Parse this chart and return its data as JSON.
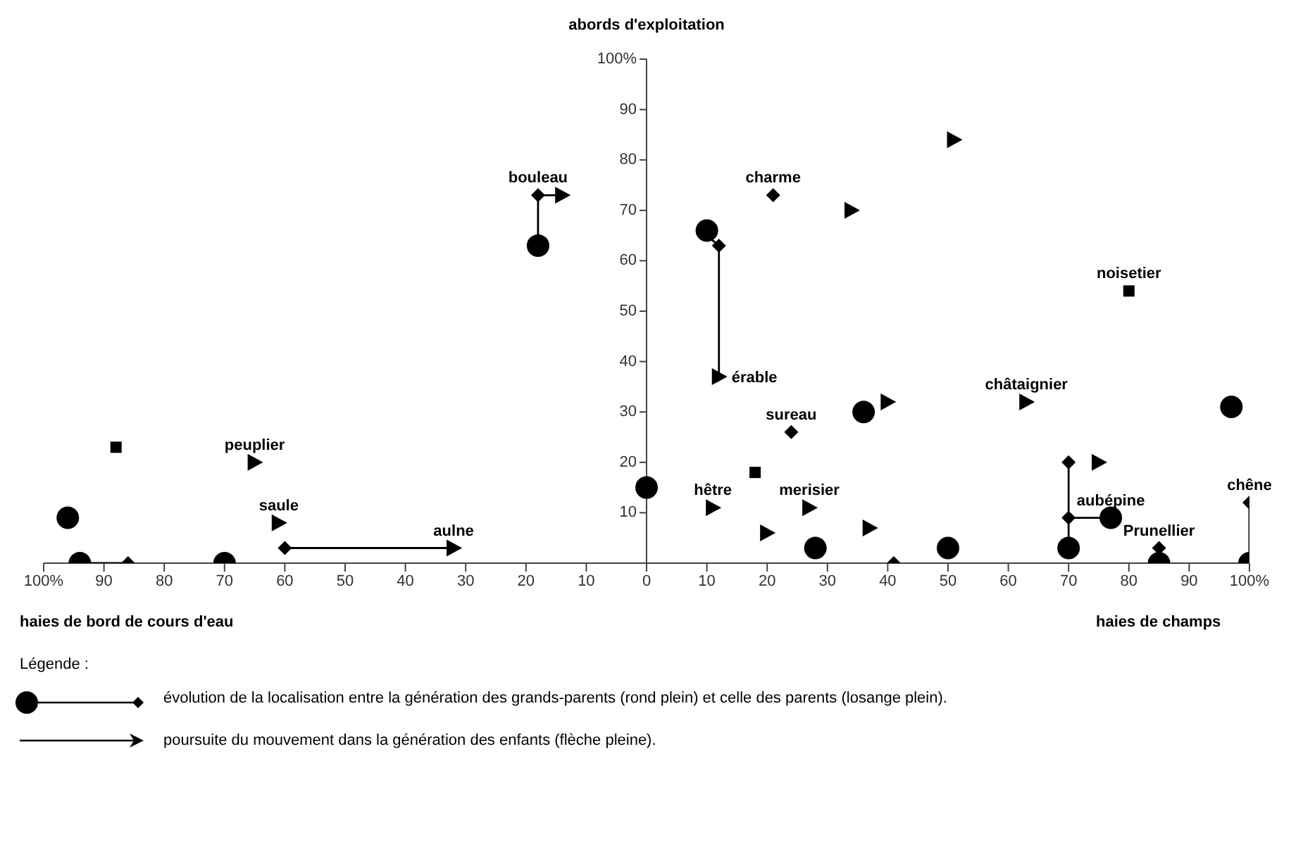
{
  "chart_data": {
    "type": "scatter",
    "ylabel": "abords d'exploitation",
    "xlabel": "haies de bord de cours d'eau",
    "xlim": [
      -100,
      100
    ],
    "xticks": [
      {
        "value": -100,
        "label": "100%"
      },
      {
        "value": -90,
        "label": "90"
      },
      {
        "value": -80,
        "label": "80"
      },
      {
        "value": -70,
        "label": "70"
      },
      {
        "value": -60,
        "label": "60"
      },
      {
        "value": -50,
        "label": "50"
      },
      {
        "value": -40,
        "label": "40"
      },
      {
        "value": -30,
        "label": "30"
      },
      {
        "value": -20,
        "label": "20"
      },
      {
        "value": -10,
        "label": "10"
      },
      0,
      10,
      20,
      30,
      40,
      50,
      60,
      70,
      80,
      90,
      {
        "value": 100,
        "label": "100%"
      }
    ],
    "ylim": [
      0,
      100
    ],
    "yticks": [
      10,
      20,
      30,
      40,
      50,
      60,
      70,
      80,
      90,
      {
        "value": 100,
        "label": "100%"
      }
    ],
    "legend": false,
    "series": [
      {
        "type": "line",
        "marker": "none",
        "color": "#000000",
        "x": [
          -94,
          -86
        ],
        "values": [
          0,
          0
        ]
      },
      {
        "type": "line",
        "marker": "none",
        "color": "#000000",
        "x": [
          -18,
          -18
        ],
        "values": [
          63,
          73
        ]
      },
      {
        "type": "line",
        "marker": "none",
        "color": "#000000",
        "x": [
          -18,
          -14
        ],
        "values": [
          73,
          73
        ]
      },
      {
        "type": "line",
        "marker": "none",
        "color": "#000000",
        "x": [
          10,
          12
        ],
        "values": [
          65,
          63
        ]
      },
      {
        "type": "line",
        "marker": "none",
        "color": "#000000",
        "x": [
          12,
          12
        ],
        "values": [
          63,
          37
        ]
      },
      {
        "type": "line",
        "marker": "none",
        "color": "#000000",
        "x": [
          -60,
          -32
        ],
        "values": [
          3,
          3
        ]
      },
      {
        "type": "line",
        "marker": "none",
        "color": "#000000",
        "x": [
          70,
          70
        ],
        "values": [
          3,
          20
        ]
      },
      {
        "type": "line",
        "marker": "none",
        "color": "#000000",
        "x": [
          70,
          77
        ],
        "values": [
          9,
          9
        ]
      },
      {
        "type": "line",
        "marker": "none",
        "color": "#000000",
        "x": [
          100,
          100
        ],
        "values": [
          0,
          12
        ]
      },
      {
        "type": "scatter",
        "marker": "circle",
        "color": "#000000",
        "x": [
          -96,
          -94,
          -70,
          -18,
          0,
          10,
          28,
          36,
          50,
          70,
          77,
          85,
          97,
          100
        ],
        "values": [
          9,
          0,
          0,
          63,
          15,
          66,
          3,
          30,
          3,
          3,
          9,
          0,
          31,
          0
        ]
      },
      {
        "type": "scatter",
        "marker": "diamond",
        "color": "#000000",
        "x": [
          -86,
          -18,
          -60,
          12,
          21,
          24,
          41,
          70,
          70,
          85,
          100
        ],
        "values": [
          0,
          73,
          3,
          63,
          73,
          26,
          0,
          20,
          9,
          3,
          12
        ]
      },
      {
        "type": "scatter",
        "marker": "square",
        "color": "#000000",
        "x": [
          -88,
          18,
          80
        ],
        "values": [
          23,
          18,
          54
        ]
      },
      {
        "type": "scatter",
        "marker": "triangle",
        "color": "#000000",
        "x": [
          -14,
          12,
          -32,
          -65,
          -61,
          11,
          20,
          27,
          37,
          34,
          40,
          51,
          63,
          75
        ],
        "values": [
          73,
          37,
          3,
          20,
          8,
          11,
          6,
          11,
          7,
          70,
          32,
          84,
          32,
          20
        ]
      }
    ],
    "annotations": [
      {
        "text": "bouleau",
        "x": -18,
        "y": 73
      },
      {
        "text": "charme",
        "x": 21,
        "y": 73
      },
      {
        "text": "érable",
        "x": 12,
        "y": 37
      },
      {
        "text": "noisetier",
        "x": 80,
        "y": 54
      },
      {
        "text": "châtaignier",
        "x": 63,
        "y": 32
      },
      {
        "text": "sureau",
        "x": 24,
        "y": 26
      },
      {
        "text": "peuplier",
        "x": -65,
        "y": 20
      },
      {
        "text": "hêtre",
        "x": 11,
        "y": 11
      },
      {
        "text": "merisier",
        "x": 27,
        "y": 11
      },
      {
        "text": "saule",
        "x": -61,
        "y": 8
      },
      {
        "text": "aulne",
        "x": -32,
        "y": 3
      },
      {
        "text": "aubépine",
        "x": 77,
        "y": 9
      },
      {
        "text": "Prunellier",
        "x": 85,
        "y": 3
      },
      {
        "text": "chêne",
        "x": 100,
        "y": 12
      },
      "haies de champs",
      "Légende :",
      "évolution de la localisation entre la génération des grands-parents (rond plein) et celle des parents (losange plein).",
      "poursuite du mouvement dans la génération des enfants (flèche pleine)."
    ]
  }
}
